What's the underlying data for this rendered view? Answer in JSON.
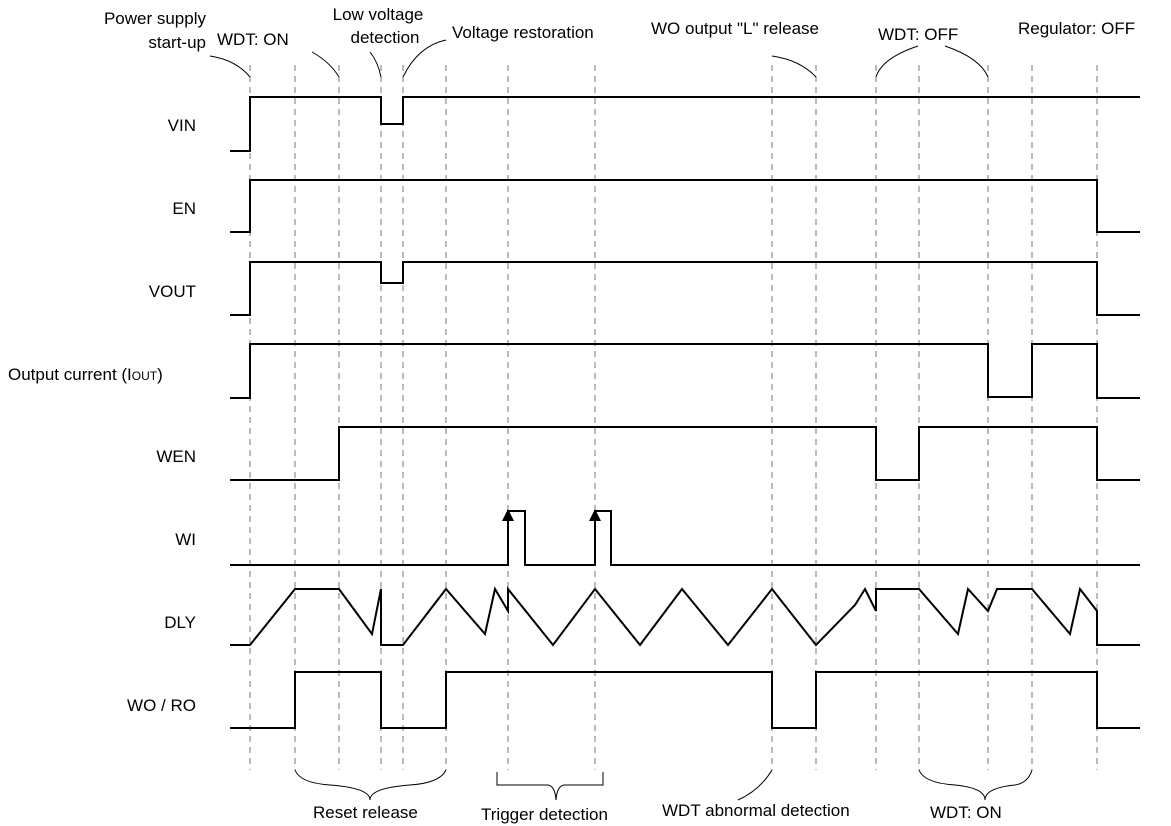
{
  "signals": [
    {
      "label": "VIN"
    },
    {
      "label": "EN"
    },
    {
      "label": "VOUT"
    },
    {
      "label": "Output current  (I",
      "sub": "OUT",
      "tail": ")"
    },
    {
      "label": "WEN"
    },
    {
      "label": "WI"
    },
    {
      "label": "DLY"
    },
    {
      "label": "WO / RO"
    }
  ],
  "annotations_top": [
    {
      "lines": [
        "Power supply",
        "start-up"
      ]
    },
    {
      "lines": [
        "WDT: ON"
      ]
    },
    {
      "lines": [
        "Low voltage",
        "detection"
      ]
    },
    {
      "lines": [
        "Voltage restoration"
      ]
    },
    {
      "lines": [
        "WO output \"L\" release"
      ]
    },
    {
      "lines": [
        "WDT: OFF"
      ]
    },
    {
      "lines": [
        "Regulator: OFF"
      ]
    }
  ],
  "annotations_bottom": [
    {
      "text": "Reset release"
    },
    {
      "text": "Trigger detection"
    },
    {
      "text": "WDT abnormal detection"
    },
    {
      "text": "WDT: ON"
    }
  ]
}
